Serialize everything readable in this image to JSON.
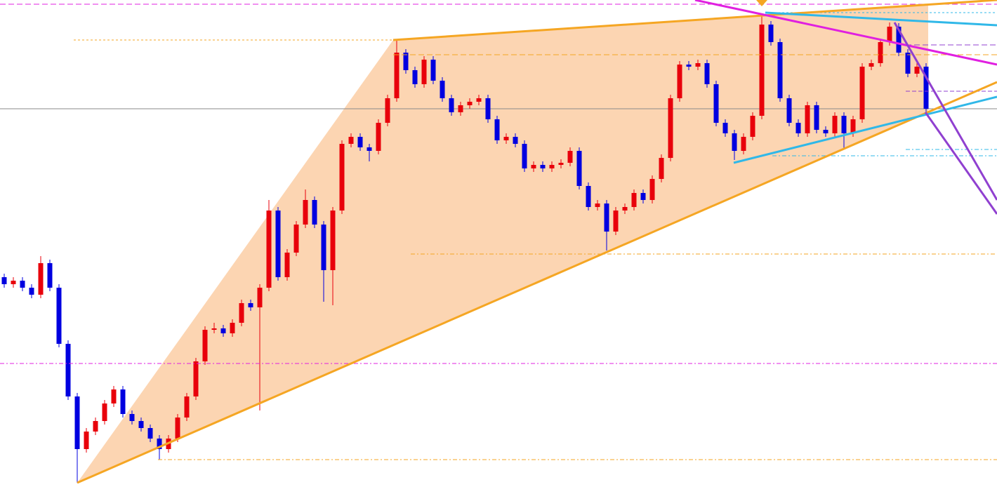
{
  "chart_data": {
    "type": "candlestick",
    "ylim": [
      0,
      704
    ],
    "up_color": "#e8000b",
    "down_color": "#0000e0",
    "open": [
      309,
      299,
      304,
      294,
      284,
      329,
      294,
      214,
      139,
      64,
      89,
      104,
      129,
      149,
      114,
      104,
      94,
      79,
      64,
      79,
      109,
      139,
      189,
      234,
      236,
      229,
      244,
      272,
      266,
      294,
      404,
      309,
      344,
      384,
      419,
      384,
      319,
      404,
      499,
      509,
      494,
      489,
      529,
      564,
      629,
      604,
      584,
      619,
      589,
      564,
      544,
      554,
      559,
      564,
      534,
      504,
      509,
      499,
      464,
      469,
      464,
      469,
      472,
      489,
      439,
      409,
      414,
      374,
      404,
      409,
      429,
      419,
      449,
      479,
      564,
      612,
      609,
      614,
      584,
      529,
      514,
      489,
      509,
      539,
      669,
      644,
      564,
      529,
      514,
      554,
      519,
      514,
      539,
      514,
      534,
      609,
      614,
      644,
      666,
      629,
      599,
      609
    ],
    "high": [
      314,
      309,
      309,
      299,
      339,
      334,
      299,
      219,
      144,
      94,
      109,
      134,
      154,
      154,
      119,
      109,
      99,
      84,
      84,
      114,
      144,
      194,
      239,
      244,
      241,
      249,
      277,
      277,
      299,
      419,
      409,
      349,
      389,
      434,
      424,
      389,
      409,
      504,
      514,
      514,
      499,
      534,
      569,
      647,
      634,
      609,
      624,
      624,
      594,
      569,
      559,
      564,
      569,
      569,
      539,
      514,
      514,
      504,
      474,
      474,
      474,
      477,
      494,
      494,
      444,
      419,
      419,
      409,
      414,
      434,
      434,
      454,
      484,
      569,
      617,
      617,
      619,
      619,
      589,
      534,
      519,
      514,
      544,
      682,
      674,
      649,
      569,
      534,
      559,
      559,
      524,
      544,
      544,
      539,
      614,
      619,
      649,
      672,
      671,
      634,
      614,
      614
    ],
    "low": [
      294,
      294,
      289,
      279,
      279,
      289,
      209,
      134,
      16,
      59,
      84,
      99,
      124,
      109,
      99,
      89,
      74,
      49,
      59,
      74,
      104,
      134,
      184,
      229,
      224,
      224,
      239,
      261,
      119,
      289,
      304,
      304,
      339,
      379,
      379,
      274,
      269,
      399,
      494,
      489,
      474,
      484,
      524,
      559,
      599,
      579,
      579,
      584,
      559,
      539,
      539,
      549,
      554,
      529,
      499,
      499,
      494,
      459,
      459,
      459,
      459,
      464,
      467,
      434,
      404,
      404,
      347,
      369,
      399,
      404,
      414,
      414,
      444,
      474,
      559,
      604,
      604,
      579,
      524,
      509,
      476,
      484,
      504,
      534,
      639,
      559,
      524,
      509,
      509,
      514,
      509,
      509,
      492,
      509,
      529,
      604,
      609,
      639,
      624,
      594,
      594,
      544
    ],
    "close": [
      299,
      304,
      294,
      284,
      329,
      294,
      214,
      139,
      64,
      89,
      104,
      129,
      149,
      114,
      104,
      94,
      79,
      64,
      79,
      109,
      139,
      189,
      234,
      236,
      229,
      244,
      272,
      266,
      294,
      404,
      309,
      344,
      384,
      419,
      384,
      319,
      404,
      499,
      509,
      494,
      489,
      529,
      564,
      629,
      604,
      584,
      619,
      589,
      564,
      544,
      554,
      559,
      564,
      534,
      504,
      509,
      499,
      464,
      469,
      464,
      469,
      472,
      489,
      439,
      409,
      414,
      374,
      404,
      409,
      429,
      419,
      449,
      479,
      564,
      612,
      609,
      614,
      584,
      529,
      514,
      489,
      509,
      539,
      669,
      644,
      564,
      529,
      514,
      554,
      519,
      514,
      539,
      514,
      534,
      609,
      614,
      644,
      666,
      629,
      599,
      609,
      549
    ]
  }
}
